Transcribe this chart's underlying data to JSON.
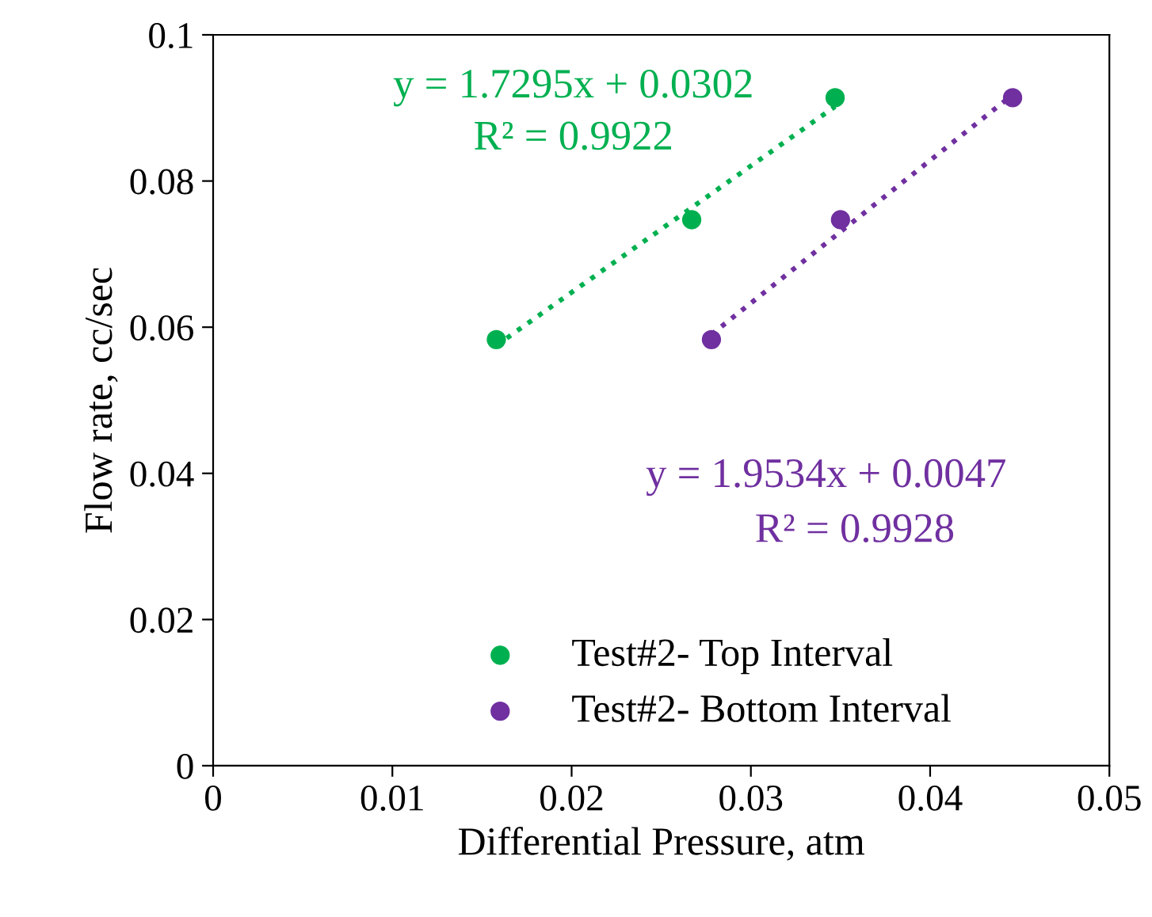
{
  "chart_data": {
    "type": "scatter",
    "xlabel": "Differential Pressure, atm",
    "ylabel": "Flow rate, cc/sec",
    "series": [
      {
        "name": "Test#2- Top Interval",
        "color": "#00b050",
        "x": [
          0.0158,
          0.0267,
          0.0347
        ],
        "values": [
          0.0583,
          0.0747,
          0.0914
        ]
      },
      {
        "name": "Test#2- Bottom Interval",
        "color": "#7030a0",
        "x": [
          0.0278,
          0.035,
          0.0446
        ],
        "values": [
          0.0583,
          0.0747,
          0.0914
        ]
      },
      {
        "type": "line",
        "color": "#00b050",
        "line_style": "dotted",
        "marker": "none",
        "x": [
          0.0158,
          0.0347
        ],
        "values": [
          0.0575,
          0.0902
        ]
      },
      {
        "type": "line",
        "color": "#7030a0",
        "line_style": "dotted",
        "marker": "none",
        "x": [
          0.0278,
          0.0446
        ],
        "values": [
          0.059,
          0.0918
        ]
      }
    ],
    "annotations": [
      "y = 1.7295x + 0.0302",
      "R² = 0.9922",
      "y = 1.9534x + 0.0047",
      "R² = 0.9928"
    ],
    "xlim": [
      0,
      0.05
    ],
    "ylim": [
      0,
      0.1
    ],
    "xticks": [
      0,
      0.01,
      0.02,
      0.03,
      0.04,
      0.05
    ],
    "yticks": [
      0,
      0.02,
      0.04,
      0.06,
      0.08,
      0.1
    ],
    "marker": "circle",
    "grid": false,
    "legend": "bottom"
  }
}
